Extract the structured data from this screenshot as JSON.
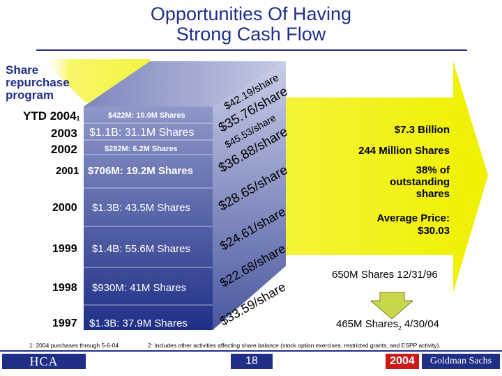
{
  "title": {
    "line1": "Opportunities Of Having",
    "line2": "Strong Cash Flow"
  },
  "left_label": [
    "Share",
    "repurchase",
    "program"
  ],
  "rows": [
    {
      "year": "YTD 2004",
      "sup": "1",
      "text": "$422M: 10.0M Shares",
      "per_share": "$42.19/share"
    },
    {
      "year": "2003",
      "sup": "",
      "text": "$1.1B: 31.1M Shares",
      "per_share": "$35.76/share"
    },
    {
      "year": "2002",
      "sup": "",
      "text": "$282M: 6.2M Shares",
      "per_share": "$45.53/share"
    },
    {
      "year": "",
      "sup": "",
      "text": "",
      "per_share": "$36.88/share"
    },
    {
      "year": "2001",
      "sup": "",
      "text": "$706M: 19.2M Shares",
      "per_share": "$28.65/share"
    },
    {
      "year": "2000",
      "sup": "",
      "text": "$1.3B: 43.5M Shares",
      "per_share": "$24.61/share"
    },
    {
      "year": "1999",
      "sup": "",
      "text": "$1.4B: 55.6M Shares",
      "per_share": "$22.68/share"
    },
    {
      "year": "1998",
      "sup": "",
      "text": "$930M: 41M Shares",
      "per_share": "$33.59/share"
    },
    {
      "year": "1997",
      "sup": "",
      "text": "$1.3B: 37.9M Shares",
      "per_share": ""
    }
  ],
  "summary": {
    "total": "$7.3 Billion",
    "shares": "244 Million Shares",
    "pct": [
      "38% of",
      "outstanding",
      "shares"
    ],
    "avg_price": [
      "Average Price:",
      "$30.03"
    ]
  },
  "shares_before": "650M Shares 12/31/96",
  "shares_after": "465M Shares",
  "shares_after_sup": "2",
  "shares_after_date": "4/30/04",
  "footnote1": "1: 2004 purchases through 5-6-04",
  "footnote2": "2: Includes other activities affecting share balance (stock option exercises, restricted grants, and ESPP activity).",
  "footer": {
    "left": "HCA",
    "page": "18",
    "year": "2004",
    "right": "Goldman Sachs"
  },
  "colors": {
    "navy": "#1f2f86",
    "yellow": "#f0f000",
    "arrow_green": "#c8d84a",
    "red": "#cc1a1a"
  }
}
